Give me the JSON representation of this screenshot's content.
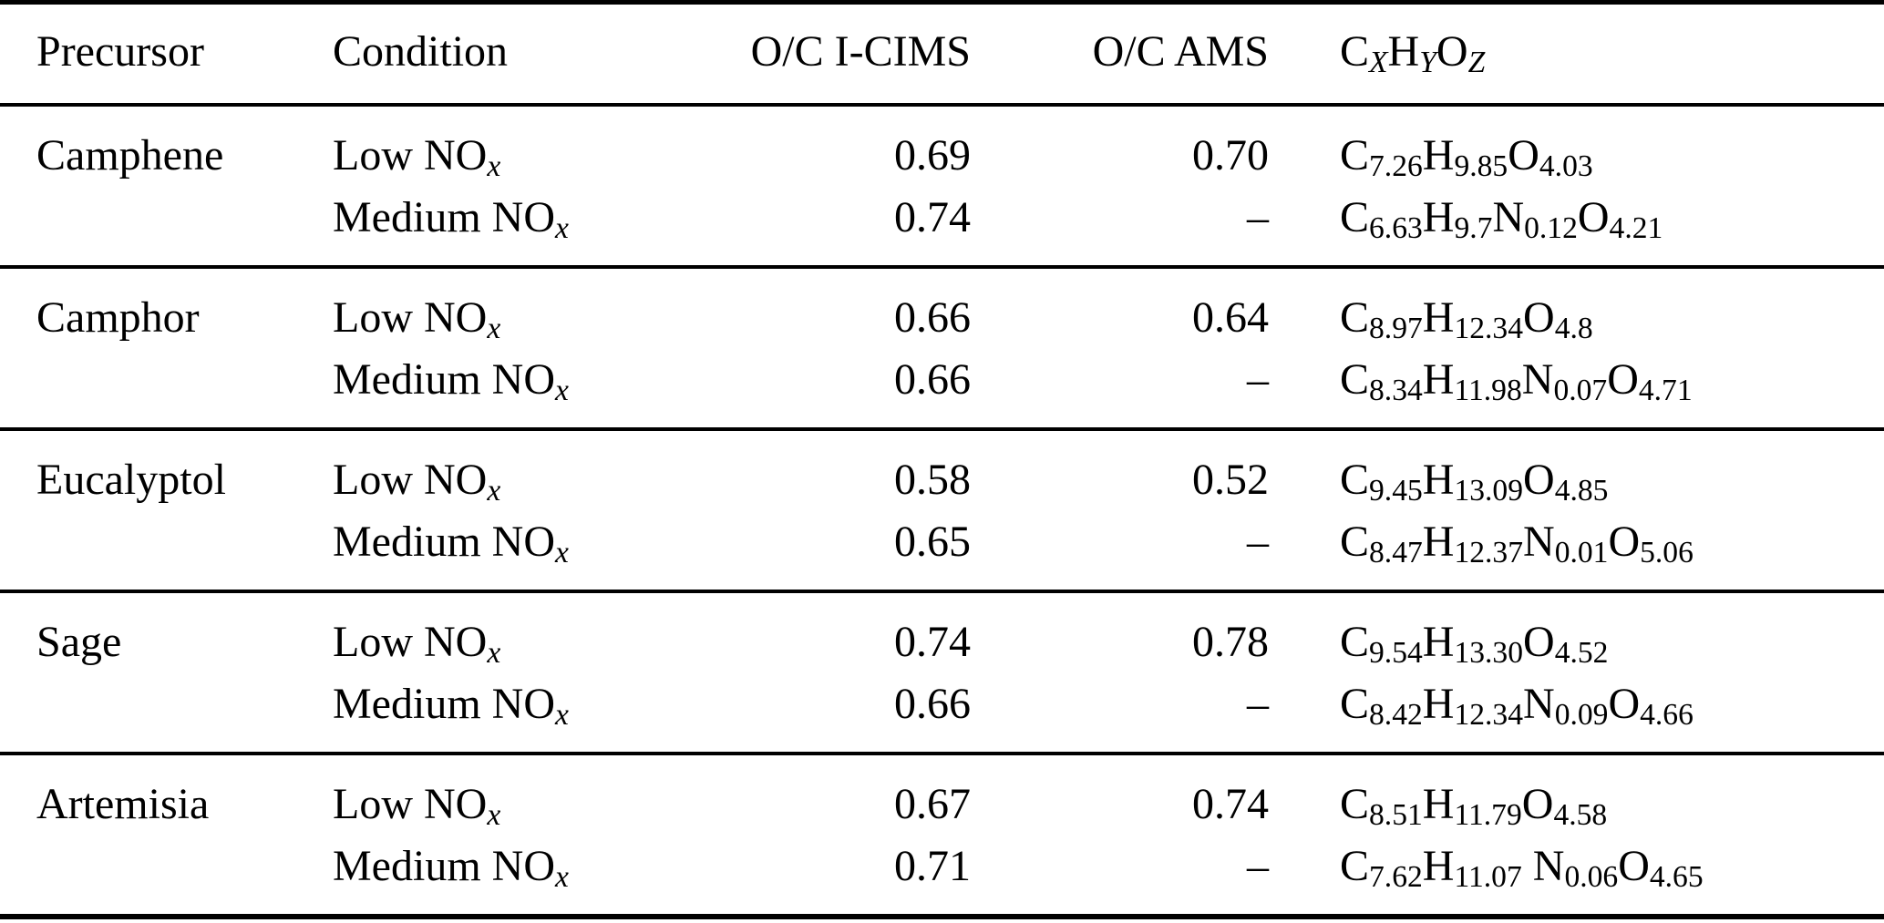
{
  "colors": {
    "background": "#ffffff",
    "text": "#000000",
    "rule": "#000000"
  },
  "table": {
    "columns": {
      "precursor": "Precursor",
      "condition": "Condition",
      "oc_icims": "O/C I-CIMS",
      "oc_ams": "O/C AMS"
    },
    "formula_header": [
      [
        "C",
        "X"
      ],
      [
        "H",
        "Y"
      ],
      [
        "O",
        "Z"
      ]
    ],
    "missing_value": "–",
    "groups": [
      {
        "precursor": "Camphene",
        "rows": [
          {
            "condition": "Low NO",
            "condition_sub": "x",
            "oc_icims": "0.69",
            "oc_ams": "0.70",
            "formula": [
              [
                "C",
                "7.26"
              ],
              [
                "H",
                "9.85"
              ],
              [
                "O",
                "4.03"
              ]
            ]
          },
          {
            "condition": "Medium NO",
            "condition_sub": "x",
            "oc_icims": "0.74",
            "oc_ams": "–",
            "formula": [
              [
                "C",
                "6.63"
              ],
              [
                "H",
                "9.7"
              ],
              [
                "N",
                "0.12"
              ],
              [
                "O",
                "4.21"
              ]
            ]
          }
        ]
      },
      {
        "precursor": "Camphor",
        "rows": [
          {
            "condition": "Low NO",
            "condition_sub": "x",
            "oc_icims": "0.66",
            "oc_ams": "0.64",
            "formula": [
              [
                "C",
                "8.97"
              ],
              [
                "H",
                "12.34"
              ],
              [
                "O",
                "4.8"
              ]
            ]
          },
          {
            "condition": "Medium NO",
            "condition_sub": "x",
            "oc_icims": "0.66",
            "oc_ams": "–",
            "formula": [
              [
                "C",
                "8.34"
              ],
              [
                "H",
                "11.98"
              ],
              [
                "N",
                "0.07"
              ],
              [
                "O",
                "4.71"
              ]
            ]
          }
        ]
      },
      {
        "precursor": "Eucalyptol",
        "rows": [
          {
            "condition": "Low NO",
            "condition_sub": "x",
            "oc_icims": "0.58",
            "oc_ams": "0.52",
            "formula": [
              [
                "C",
                "9.45"
              ],
              [
                "H",
                "13.09"
              ],
              [
                "O",
                "4.85"
              ]
            ]
          },
          {
            "condition": "Medium NO",
            "condition_sub": "x",
            "oc_icims": "0.65",
            "oc_ams": "–",
            "formula": [
              [
                "C",
                "8.47"
              ],
              [
                "H",
                "12.37"
              ],
              [
                "N",
                "0.01"
              ],
              [
                "O",
                "5.06"
              ]
            ]
          }
        ]
      },
      {
        "precursor": "Sage",
        "rows": [
          {
            "condition": "Low NO",
            "condition_sub": "x",
            "oc_icims": "0.74",
            "oc_ams": "0.78",
            "formula": [
              [
                "C",
                "9.54"
              ],
              [
                "H",
                "13.30"
              ],
              [
                "O",
                "4.52"
              ]
            ]
          },
          {
            "condition": "Medium NO",
            "condition_sub": "x",
            "oc_icims": "0.66",
            "oc_ams": "–",
            "formula": [
              [
                "C",
                "8.42"
              ],
              [
                "H",
                "12.34"
              ],
              [
                "N",
                "0.09"
              ],
              [
                "O",
                "4.66"
              ]
            ]
          }
        ]
      },
      {
        "precursor": "Artemisia",
        "rows": [
          {
            "condition": "Low NO",
            "condition_sub": "x",
            "oc_icims": "0.67",
            "oc_ams": "0.74",
            "formula": [
              [
                "C",
                "8.51"
              ],
              [
                "H",
                "11.79"
              ],
              [
                "O",
                "4.58"
              ]
            ]
          },
          {
            "condition": "Medium NO",
            "condition_sub": "x",
            "oc_icims": "0.71",
            "oc_ams": "–",
            "formula": [
              [
                "C",
                "7.62"
              ],
              [
                "H",
                "11.07"
              ],
              [
                " N",
                "0.06"
              ],
              [
                "O",
                "4.65"
              ]
            ]
          }
        ]
      }
    ]
  }
}
